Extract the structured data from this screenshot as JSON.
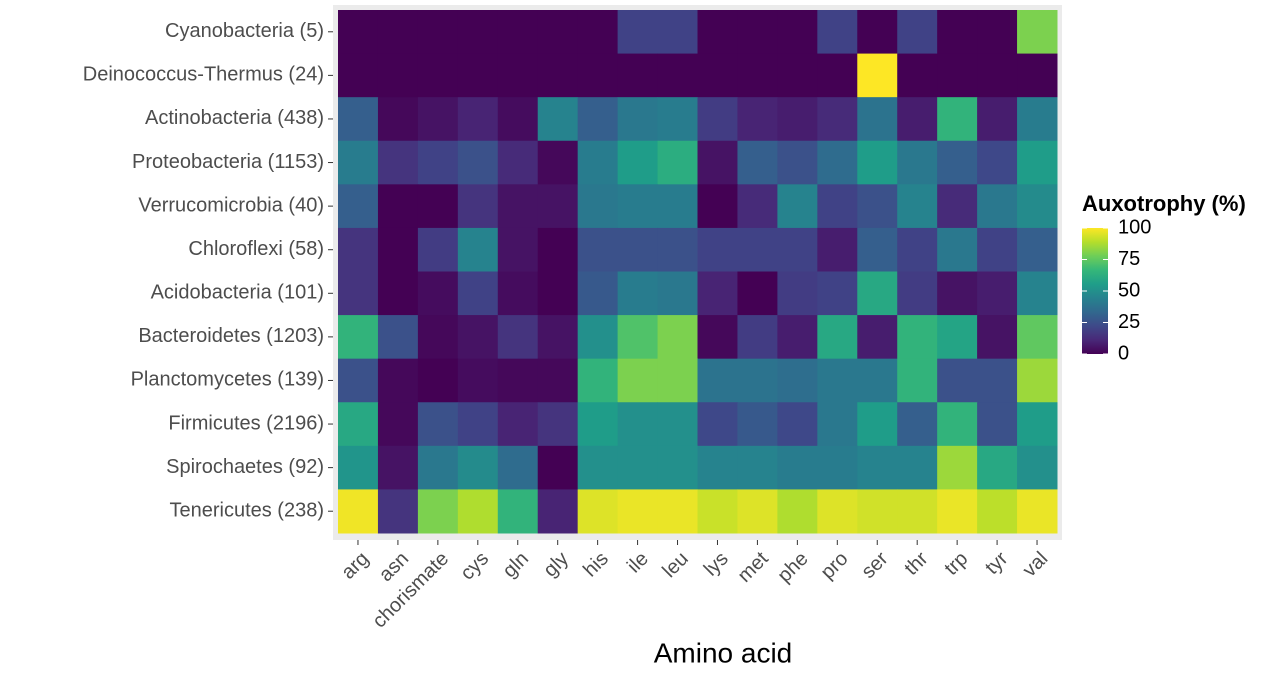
{
  "chart_data": {
    "type": "heatmap",
    "x_label": "Amino acid",
    "categories": [
      "arg",
      "asn",
      "chorismate",
      "cys",
      "gln",
      "gly",
      "his",
      "ile",
      "leu",
      "lys",
      "met",
      "phe",
      "pro",
      "ser",
      "thr",
      "trp",
      "tyr",
      "val"
    ],
    "rows": [
      "Cyanobacteria (5)",
      "Deinococcus-Thermus (24)",
      "Actinobacteria (438)",
      "Proteobacteria (1153)",
      "Verrucomicrobia (40)",
      "Chloroflexi (58)",
      "Acidobacteria (101)",
      "Bacteroidetes (1203)",
      "Planctomycetes (139)",
      "Firmicutes (2196)",
      "Spirochaetes (92)",
      "Tenericutes (238)"
    ],
    "values": [
      [
        0,
        0,
        0,
        0,
        0,
        0,
        0,
        20,
        20,
        0,
        0,
        0,
        20,
        0,
        20,
        0,
        0,
        80
      ],
      [
        0,
        0,
        0,
        0,
        0,
        0,
        0,
        0,
        0,
        0,
        0,
        0,
        0,
        100,
        0,
        0,
        0,
        0
      ],
      [
        30,
        2,
        5,
        10,
        3,
        45,
        30,
        40,
        42,
        18,
        10,
        8,
        12,
        38,
        8,
        65,
        8,
        42
      ],
      [
        42,
        15,
        20,
        25,
        12,
        2,
        42,
        55,
        62,
        5,
        30,
        25,
        35,
        55,
        40,
        30,
        22,
        55
      ],
      [
        30,
        0,
        0,
        15,
        5,
        5,
        40,
        42,
        42,
        0,
        12,
        45,
        20,
        25,
        45,
        12,
        40,
        48
      ],
      [
        15,
        0,
        18,
        45,
        5,
        0,
        25,
        25,
        25,
        20,
        20,
        20,
        8,
        30,
        20,
        40,
        20,
        30
      ],
      [
        15,
        0,
        3,
        20,
        3,
        0,
        28,
        42,
        40,
        10,
        0,
        18,
        20,
        60,
        18,
        5,
        8,
        45
      ],
      [
        65,
        25,
        2,
        5,
        15,
        5,
        50,
        72,
        80,
        2,
        18,
        8,
        60,
        8,
        65,
        58,
        5,
        75
      ],
      [
        25,
        2,
        0,
        3,
        2,
        2,
        65,
        80,
        80,
        38,
        38,
        36,
        40,
        40,
        65,
        25,
        25,
        85
      ],
      [
        60,
        2,
        25,
        20,
        10,
        15,
        55,
        50,
        50,
        22,
        28,
        22,
        40,
        55,
        30,
        65,
        25,
        55
      ],
      [
        52,
        5,
        40,
        48,
        35,
        0,
        50,
        50,
        50,
        45,
        45,
        42,
        42,
        45,
        45,
        85,
        60,
        50
      ],
      [
        98,
        15,
        80,
        88,
        65,
        10,
        95,
        97,
        97,
        92,
        95,
        88,
        95,
        93,
        93,
        97,
        90,
        97
      ]
    ],
    "colormap": "viridis",
    "legend": {
      "title": "Auxotrophy (%)",
      "lim": [
        0,
        100
      ],
      "ticks": [
        0,
        25,
        50,
        75,
        100
      ]
    }
  }
}
